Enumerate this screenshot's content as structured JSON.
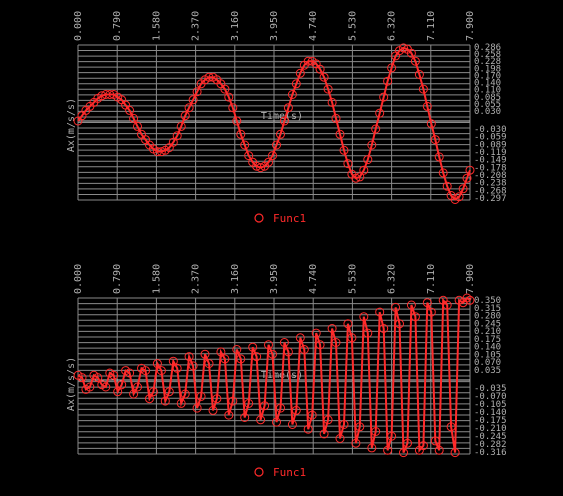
{
  "charts": [
    {
      "id": "top",
      "chart_data": {
        "type": "line",
        "xlabel": "Time(s)",
        "ylabel": "Ax(m/s/s)",
        "x_tick_labels": [
          "0.000",
          "0.790",
          "1.580",
          "2.370",
          "3.160",
          "3.950",
          "4.740",
          "5.530",
          "6.320",
          "7.110",
          "7.900"
        ],
        "xlim": [
          0,
          7.9
        ],
        "ylim": [
          -0.297,
          0.286
        ],
        "y_tick_labels_pos": [
          "0.286",
          "0.258",
          "0.228",
          "0.198",
          "0.170",
          "0.140",
          "0.110",
          "0.085",
          "0.055",
          "0.030"
        ],
        "y_tick_labels_neg": [
          "-0.030",
          "-0.059",
          "-0.089",
          "-0.119",
          "-0.149",
          "-0.178",
          "-0.208",
          "-0.238",
          "-0.268",
          "-0.297"
        ],
        "legend": "Func1",
        "series_color": "#ff2a2a",
        "series": [
          {
            "name": "Func1",
            "points": [
              [
                0.0,
                0.0
              ],
              [
                0.08,
                0.02
              ],
              [
                0.16,
                0.04
              ],
              [
                0.24,
                0.055
              ],
              [
                0.32,
                0.07
              ],
              [
                0.4,
                0.085
              ],
              [
                0.48,
                0.095
              ],
              [
                0.56,
                0.1
              ],
              [
                0.64,
                0.1
              ],
              [
                0.72,
                0.1
              ],
              [
                0.8,
                0.09
              ],
              [
                0.88,
                0.08
              ],
              [
                0.96,
                0.06
              ],
              [
                1.04,
                0.04
              ],
              [
                1.12,
                0.01
              ],
              [
                1.2,
                -0.02
              ],
              [
                1.28,
                -0.05
              ],
              [
                1.36,
                -0.07
              ],
              [
                1.44,
                -0.09
              ],
              [
                1.52,
                -0.105
              ],
              [
                1.6,
                -0.115
              ],
              [
                1.68,
                -0.115
              ],
              [
                1.76,
                -0.11
              ],
              [
                1.84,
                -0.1
              ],
              [
                1.92,
                -0.08
              ],
              [
                2.0,
                -0.055
              ],
              [
                2.08,
                -0.02
              ],
              [
                2.16,
                0.02
              ],
              [
                2.24,
                0.05
              ],
              [
                2.32,
                0.08
              ],
              [
                2.4,
                0.11
              ],
              [
                2.48,
                0.14
              ],
              [
                2.56,
                0.155
              ],
              [
                2.64,
                0.165
              ],
              [
                2.72,
                0.165
              ],
              [
                2.8,
                0.155
              ],
              [
                2.88,
                0.14
              ],
              [
                2.96,
                0.12
              ],
              [
                3.04,
                0.09
              ],
              [
                3.12,
                0.05
              ],
              [
                3.2,
                0.0
              ],
              [
                3.28,
                -0.05
              ],
              [
                3.36,
                -0.09
              ],
              [
                3.44,
                -0.13
              ],
              [
                3.52,
                -0.155
              ],
              [
                3.6,
                -0.17
              ],
              [
                3.68,
                -0.175
              ],
              [
                3.76,
                -0.17
              ],
              [
                3.84,
                -0.155
              ],
              [
                3.92,
                -0.13
              ],
              [
                4.0,
                -0.09
              ],
              [
                4.08,
                -0.05
              ],
              [
                4.16,
                0.0
              ],
              [
                4.24,
                0.05
              ],
              [
                4.32,
                0.1
              ],
              [
                4.4,
                0.14
              ],
              [
                4.48,
                0.18
              ],
              [
                4.56,
                0.21
              ],
              [
                4.64,
                0.225
              ],
              [
                4.72,
                0.225
              ],
              [
                4.8,
                0.215
              ],
              [
                4.88,
                0.195
              ],
              [
                4.96,
                0.165
              ],
              [
                5.04,
                0.12
              ],
              [
                5.12,
                0.07
              ],
              [
                5.2,
                0.01
              ],
              [
                5.28,
                -0.05
              ],
              [
                5.36,
                -0.11
              ],
              [
                5.44,
                -0.16
              ],
              [
                5.52,
                -0.2
              ],
              [
                5.6,
                -0.215
              ],
              [
                5.68,
                -0.21
              ],
              [
                5.76,
                -0.185
              ],
              [
                5.84,
                -0.145
              ],
              [
                5.92,
                -0.09
              ],
              [
                6.0,
                -0.03
              ],
              [
                6.08,
                0.03
              ],
              [
                6.16,
                0.09
              ],
              [
                6.24,
                0.15
              ],
              [
                6.32,
                0.2
              ],
              [
                6.4,
                0.245
              ],
              [
                6.48,
                0.265
              ],
              [
                6.56,
                0.275
              ],
              [
                6.64,
                0.27
              ],
              [
                6.72,
                0.255
              ],
              [
                6.8,
                0.225
              ],
              [
                6.88,
                0.175
              ],
              [
                6.96,
                0.12
              ],
              [
                7.04,
                0.055
              ],
              [
                7.12,
                -0.01
              ],
              [
                7.2,
                -0.07
              ],
              [
                7.28,
                -0.135
              ],
              [
                7.36,
                -0.195
              ],
              [
                7.44,
                -0.245
              ],
              [
                7.52,
                -0.28
              ],
              [
                7.6,
                -0.295
              ],
              [
                7.68,
                -0.285
              ],
              [
                7.76,
                -0.255
              ],
              [
                7.84,
                -0.215
              ],
              [
                7.9,
                -0.185
              ]
            ]
          }
        ]
      }
    },
    {
      "id": "bottom",
      "chart_data": {
        "type": "line",
        "xlabel": "Time(s)",
        "ylabel": "Ax(m/s/s)",
        "x_tick_labels": [
          "0.000",
          "0.790",
          "1.580",
          "2.370",
          "3.160",
          "3.950",
          "4.740",
          "5.530",
          "6.320",
          "7.110",
          "7.900"
        ],
        "xlim": [
          0,
          7.9
        ],
        "ylim": [
          -0.316,
          0.35
        ],
        "y_tick_labels_pos": [
          "0.350",
          "0.315",
          "0.280",
          "0.245",
          "0.210",
          "0.175",
          "0.140",
          "0.105",
          "0.070",
          "0.035"
        ],
        "y_tick_labels_neg": [
          "-0.035",
          "-0.070",
          "-0.105",
          "-0.140",
          "-0.175",
          "-0.210",
          "-0.245",
          "-0.282",
          "-0.316"
        ],
        "legend": "Func1",
        "series_color": "#ff2a2a",
        "series": [
          {
            "name": "Func1",
            "points": [
              [
                0.0,
                0.02
              ],
              [
                0.08,
                0.01
              ],
              [
                0.16,
                -0.04
              ],
              [
                0.24,
                -0.03
              ],
              [
                0.32,
                0.02
              ],
              [
                0.4,
                0.01
              ],
              [
                0.48,
                -0.02
              ],
              [
                0.56,
                -0.03
              ],
              [
                0.64,
                0.03
              ],
              [
                0.72,
                0.02
              ],
              [
                0.8,
                -0.05
              ],
              [
                0.88,
                -0.02
              ],
              [
                0.96,
                0.04
              ],
              [
                1.04,
                0.03
              ],
              [
                1.12,
                -0.06
              ],
              [
                1.2,
                -0.03
              ],
              [
                1.28,
                0.05
              ],
              [
                1.36,
                0.04
              ],
              [
                1.44,
                -0.08
              ],
              [
                1.52,
                -0.05
              ],
              [
                1.6,
                0.07
              ],
              [
                1.68,
                0.04
              ],
              [
                1.76,
                -0.09
              ],
              [
                1.84,
                -0.05
              ],
              [
                1.92,
                0.08
              ],
              [
                2.0,
                0.05
              ],
              [
                2.08,
                -0.1
              ],
              [
                2.16,
                -0.06
              ],
              [
                2.24,
                0.1
              ],
              [
                2.32,
                0.06
              ],
              [
                2.4,
                -0.12
              ],
              [
                2.48,
                -0.07
              ],
              [
                2.56,
                0.11
              ],
              [
                2.64,
                0.07
              ],
              [
                2.72,
                -0.13
              ],
              [
                2.8,
                -0.08
              ],
              [
                2.88,
                0.12
              ],
              [
                2.96,
                0.09
              ],
              [
                3.04,
                -0.15
              ],
              [
                3.12,
                -0.09
              ],
              [
                3.2,
                0.13
              ],
              [
                3.28,
                0.09
              ],
              [
                3.36,
                -0.16
              ],
              [
                3.44,
                -0.1
              ],
              [
                3.52,
                0.14
              ],
              [
                3.6,
                0.1
              ],
              [
                3.68,
                -0.17
              ],
              [
                3.76,
                -0.11
              ],
              [
                3.84,
                0.15
              ],
              [
                3.92,
                0.11
              ],
              [
                4.0,
                -0.18
              ],
              [
                4.08,
                -0.12
              ],
              [
                4.16,
                0.16
              ],
              [
                4.24,
                0.12
              ],
              [
                4.32,
                -0.19
              ],
              [
                4.4,
                -0.13
              ],
              [
                4.48,
                0.18
              ],
              [
                4.56,
                0.13
              ],
              [
                4.64,
                -0.21
              ],
              [
                4.72,
                -0.15
              ],
              [
                4.8,
                0.2
              ],
              [
                4.88,
                0.15
              ],
              [
                4.96,
                -0.23
              ],
              [
                5.04,
                -0.17
              ],
              [
                5.12,
                0.22
              ],
              [
                5.2,
                0.16
              ],
              [
                5.28,
                -0.25
              ],
              [
                5.36,
                -0.19
              ],
              [
                5.44,
                0.24
              ],
              [
                5.52,
                0.18
              ],
              [
                5.6,
                -0.27
              ],
              [
                5.68,
                -0.2
              ],
              [
                5.76,
                0.27
              ],
              [
                5.84,
                0.2
              ],
              [
                5.92,
                -0.29
              ],
              [
                6.0,
                -0.22
              ],
              [
                6.08,
                0.29
              ],
              [
                6.16,
                0.22
              ],
              [
                6.24,
                -0.3
              ],
              [
                6.32,
                -0.24
              ],
              [
                6.4,
                0.31
              ],
              [
                6.48,
                0.24
              ],
              [
                6.56,
                -0.31
              ],
              [
                6.64,
                -0.27
              ],
              [
                6.72,
                0.32
              ],
              [
                6.8,
                0.27
              ],
              [
                6.88,
                -0.3
              ],
              [
                6.96,
                -0.28
              ],
              [
                7.04,
                0.33
              ],
              [
                7.12,
                0.29
              ],
              [
                7.2,
                -0.26
              ],
              [
                7.28,
                -0.3
              ],
              [
                7.36,
                0.34
              ],
              [
                7.44,
                0.32
              ],
              [
                7.52,
                -0.2
              ],
              [
                7.6,
                -0.31
              ],
              [
                7.68,
                0.34
              ],
              [
                7.76,
                0.33
              ],
              [
                7.84,
                0.35
              ],
              [
                7.9,
                0.34
              ]
            ]
          }
        ]
      }
    }
  ]
}
